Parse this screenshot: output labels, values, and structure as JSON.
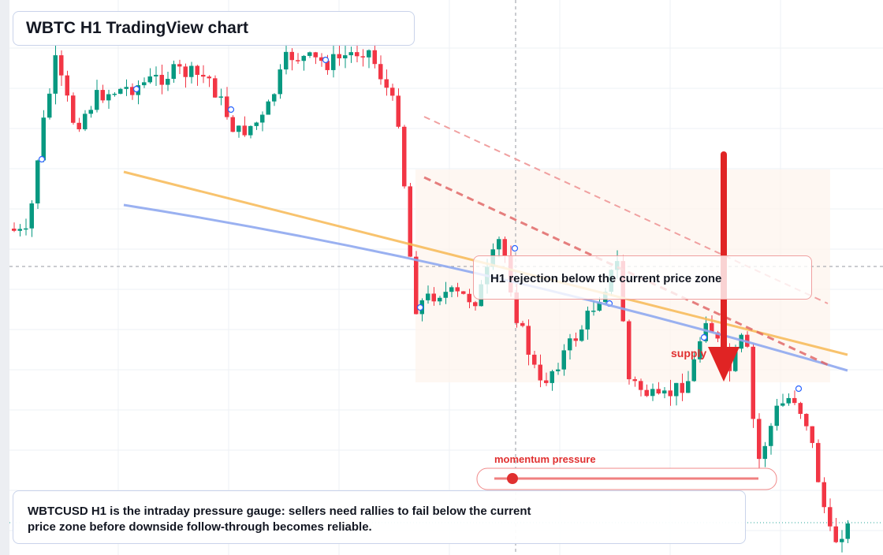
{
  "header": {
    "title": "WBTC H1 TradingView chart"
  },
  "callout": {
    "text": "H1 rejection below the current price zone"
  },
  "zone_label": "supply",
  "gauge": {
    "label": "momentum pressure"
  },
  "note": {
    "text": "WBTCUSD H1 is the intraday pressure gauge: sellers need rallies to fail below the current price zone before downside follow-through becomes reliable."
  }
}
